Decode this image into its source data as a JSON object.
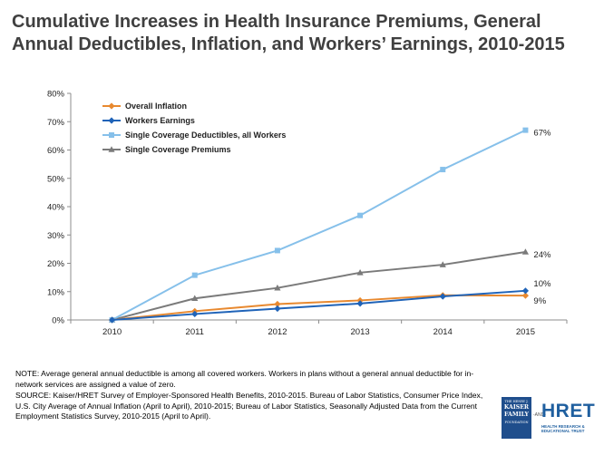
{
  "title_line1": "Cumulative Increases in Health Insurance Premiums, General",
  "title_line2": "Annual Deductibles, Inflation, and Workers’ Earnings, 2010-2015",
  "notes": {
    "note": "NOTE:  Average general annual deductible  is among  all covered workers. Workers in plans without a general annual deductible for in-network services are assigned a value of zero.",
    "source": "SOURCE:  Kaiser/HRET Survey of Employer-Sponsored Health Benefits, 2010-2015.  Bureau of Labor Statistics, Consumer Price Index, U.S. City Average of Annual Inflation (April to April), 2010-2015; Bureau of Labor Statistics, Seasonally Adjusted Data from the Current Employment Statistics Survey, 2010-2015 (April to April)."
  },
  "logos": {
    "kff_small": "THE HENRY J.",
    "kff_line1": "KAISER",
    "kff_line2": "FAMILY",
    "kff_line3": "FOUNDATION",
    "amp": "-AND-",
    "hret": "HRET",
    "hret_sub": "HEALTH RESEARCH & EDUCATIONAL TRUST"
  },
  "chart_data": {
    "type": "line",
    "categories": [
      "2010",
      "2011",
      "2012",
      "2013",
      "2014",
      "2015"
    ],
    "ylim": [
      0,
      80
    ],
    "yticks": [
      "0%",
      "10%",
      "20%",
      "30%",
      "40%",
      "50%",
      "60%",
      "70%",
      "80%"
    ],
    "grid": false,
    "legend_position": "top-left",
    "series": [
      {
        "name": "Overall Inflation",
        "color": "#e8892f",
        "marker": "diamond",
        "values": [
          0,
          3.1,
          5.6,
          6.9,
          8.7,
          8.6
        ],
        "end_label": "9%"
      },
      {
        "name": "Workers Earnings",
        "color": "#1f63b8",
        "marker": "diamond",
        "values": [
          0,
          2.1,
          4.0,
          5.8,
          8.3,
          10.3
        ],
        "end_label": "10%"
      },
      {
        "name": "Single Coverage Deductibles, all Workers",
        "color": "#86c0ea",
        "marker": "square",
        "values": [
          0,
          15.8,
          24.5,
          36.9,
          53.1,
          67.0
        ],
        "end_label": "67%"
      },
      {
        "name": "Single Coverage Premiums",
        "color": "#7a7a7a",
        "marker": "triangle",
        "values": [
          0,
          7.6,
          11.3,
          16.7,
          19.5,
          24.0
        ],
        "end_label": "24%"
      }
    ]
  }
}
